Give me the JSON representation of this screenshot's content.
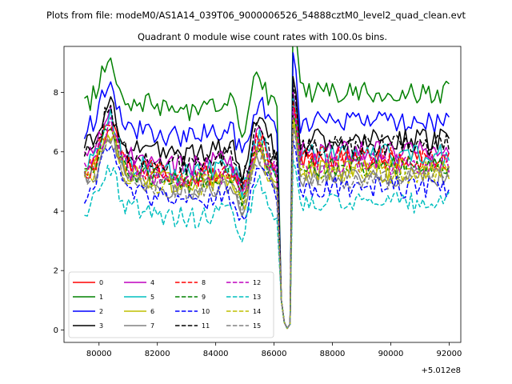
{
  "figure": {
    "suptitle": "Plots from file: modeM0/AS1A14_039T06_9000006526_54888cztM0_level2_quad_clean.evt",
    "title": "Quadrant 0 module wise count rates with 100.0s bins."
  },
  "chart_data": {
    "type": "line",
    "title": "Quadrant 0 module wise count rates with 100.0s bins.",
    "xlabel": "",
    "ylabel": "",
    "x_offset_label": "+5.012e8",
    "xlim": [
      78800,
      92400
    ],
    "ylim": [
      -0.42,
      9.55
    ],
    "x_ticks": [
      80000,
      82000,
      84000,
      86000,
      88000,
      90000,
      92000
    ],
    "x_tick_labels": [
      "80000",
      "82000",
      "84000",
      "86000",
      "88000",
      "90000",
      "92000"
    ],
    "y_ticks": [
      0,
      2,
      4,
      6,
      8
    ],
    "y_tick_labels": [
      "0",
      "2",
      "4",
      "6",
      "8"
    ],
    "grid": false,
    "legend_position": "lower-left",
    "legend_columns": 4,
    "x_start": 79500,
    "x_step": 100,
    "n_points": 126,
    "gap": {
      "x": [
        86250,
        86350,
        86450,
        86550,
        86650,
        86750
      ],
      "y": [
        1.0,
        0.25,
        0.05,
        0.2,
        8.0,
        7.5
      ]
    },
    "series": [
      {
        "name": "0",
        "color": "#ff0000",
        "dash": "solid",
        "base_pre": 5.4,
        "base_post": 5.7
      },
      {
        "name": "1",
        "color": "#008000",
        "dash": "solid",
        "base_pre": 7.7,
        "base_post": 8.0
      },
      {
        "name": "2",
        "color": "#0000ff",
        "dash": "solid",
        "base_pre": 6.8,
        "base_post": 7.0
      },
      {
        "name": "3",
        "color": "#000000",
        "dash": "solid",
        "base_pre": 6.2,
        "base_post": 6.4
      },
      {
        "name": "4",
        "color": "#bf00bf",
        "dash": "solid",
        "base_pre": 5.8,
        "base_post": 6.0
      },
      {
        "name": "5",
        "color": "#00bfbf",
        "dash": "solid",
        "base_pre": 5.6,
        "base_post": 5.9
      },
      {
        "name": "6",
        "color": "#bfbf00",
        "dash": "solid",
        "base_pre": 5.2,
        "base_post": 5.4
      },
      {
        "name": "7",
        "color": "#808080",
        "dash": "solid",
        "base_pre": 5.0,
        "base_post": 5.2
      },
      {
        "name": "8",
        "color": "#ff0000",
        "dash": "dashed",
        "base_pre": 5.5,
        "base_post": 5.8
      },
      {
        "name": "9",
        "color": "#008000",
        "dash": "dashed",
        "base_pre": 5.3,
        "base_post": 5.5
      },
      {
        "name": "10",
        "color": "#0000ff",
        "dash": "dashed",
        "base_pre": 4.6,
        "base_post": 4.8
      },
      {
        "name": "11",
        "color": "#000000",
        "dash": "dashed",
        "base_pre": 5.9,
        "base_post": 6.2
      },
      {
        "name": "12",
        "color": "#bf00bf",
        "dash": "dashed",
        "base_pre": 5.4,
        "base_post": 5.6
      },
      {
        "name": "13",
        "color": "#00bfbf",
        "dash": "dashed",
        "base_pre": 4.1,
        "base_post": 4.3
      },
      {
        "name": "14",
        "color": "#bfbf00",
        "dash": "dashed",
        "base_pre": 5.1,
        "base_post": 5.3
      },
      {
        "name": "15",
        "color": "#808080",
        "dash": "dashed",
        "base_pre": 5.0,
        "base_post": 5.1
      }
    ]
  }
}
